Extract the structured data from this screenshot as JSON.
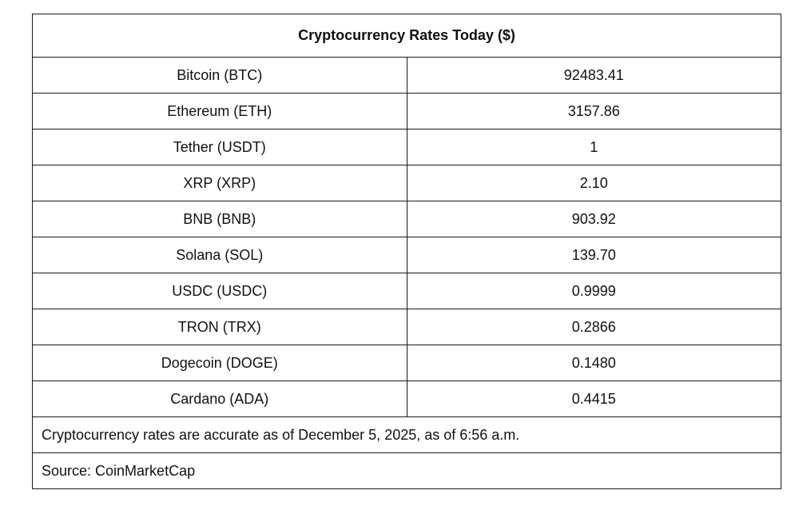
{
  "table": {
    "title": "Cryptocurrency Rates Today ($)",
    "rows": [
      {
        "name": "Bitcoin (BTC)",
        "value": "92483.41"
      },
      {
        "name": "Ethereum (ETH)",
        "value": "3157.86"
      },
      {
        "name": "Tether (USDT)",
        "value": "1"
      },
      {
        "name": "XRP (XRP)",
        "value": "2.10"
      },
      {
        "name": "BNB (BNB)",
        "value": "903.92"
      },
      {
        "name": "Solana (SOL)",
        "value": "139.70"
      },
      {
        "name": "USDC (USDC)",
        "value": "0.9999"
      },
      {
        "name": "TRON (TRX)",
        "value": "0.2866"
      },
      {
        "name": "Dogecoin (DOGE)",
        "value": "0.1480"
      },
      {
        "name": "Cardano (ADA)",
        "value": "0.4415"
      }
    ],
    "note": "Cryptocurrency rates are accurate as of December 5, 2025, as of 6:56 a.m.",
    "source": "Source: CoinMarketCap"
  }
}
